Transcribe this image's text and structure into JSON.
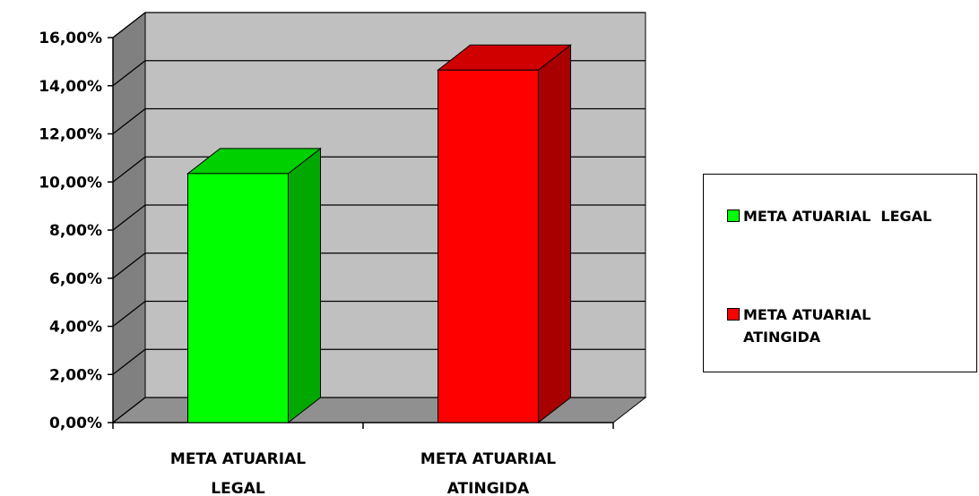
{
  "chart_data": {
    "type": "bar",
    "categories": [
      "META ATUARIAL LEGAL",
      "META ATUARIAL ATINGIDA"
    ],
    "category_lines": [
      [
        "META ATUARIAL",
        "LEGAL"
      ],
      [
        "META ATUARIAL",
        "ATINGIDA"
      ]
    ],
    "values": [
      0.1035,
      0.1465
    ],
    "value_format": "percent_2dp_comma",
    "ylim": [
      0,
      0.16
    ],
    "yticks": [
      "0,00%",
      "2,00%",
      "4,00%",
      "6,00%",
      "8,00%",
      "10,00%",
      "12,00%",
      "14,00%",
      "16,00%"
    ],
    "style": "3d-column",
    "grid": true,
    "legend_position": "right",
    "bar_colors": [
      "#00ff00",
      "#ff0000"
    ],
    "bar_side_colors": [
      "#00a800",
      "#a80000"
    ],
    "bar_top_colors": [
      "#00d000",
      "#d00000"
    ],
    "wall_color": "#c0c0c0",
    "side_wall_color": "#808080",
    "floor_color": "#909090",
    "legend": [
      {
        "label": "META ATUARIAL  LEGAL",
        "color": "#00ff00"
      },
      {
        "label": "META ATUARIAL\nATINGIDA",
        "color": "#ff0000"
      }
    ]
  }
}
